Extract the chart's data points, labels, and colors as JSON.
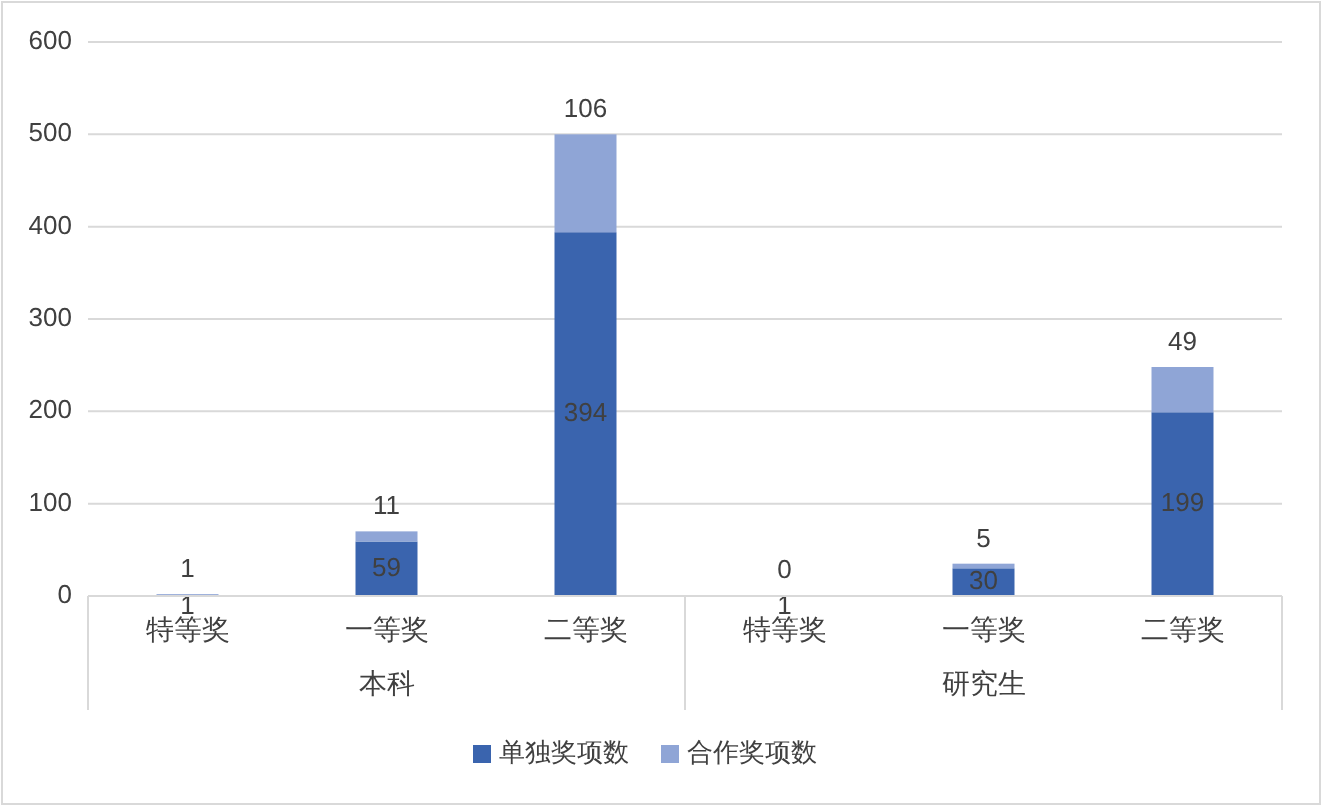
{
  "chart_data": {
    "type": "bar",
    "stacked": true,
    "categories": [
      "特等奖",
      "一等奖",
      "二等奖",
      "特等奖",
      "一等奖",
      "二等奖"
    ],
    "series": [
      {
        "name": "单独奖项数",
        "color": "#3a64ae",
        "values": [
          1,
          59,
          394,
          1,
          30,
          199
        ]
      },
      {
        "name": "合作奖项数",
        "color": "#8fa5d6",
        "values": [
          1,
          11,
          106,
          0,
          5,
          49
        ]
      }
    ],
    "ylim": [
      0,
      600
    ],
    "yticks": [
      0,
      100,
      200,
      300,
      400,
      500,
      600
    ],
    "grid": "y",
    "legend": "bottom",
    "data_labels": true,
    "annotations": [
      "本科",
      "研究生"
    ]
  }
}
